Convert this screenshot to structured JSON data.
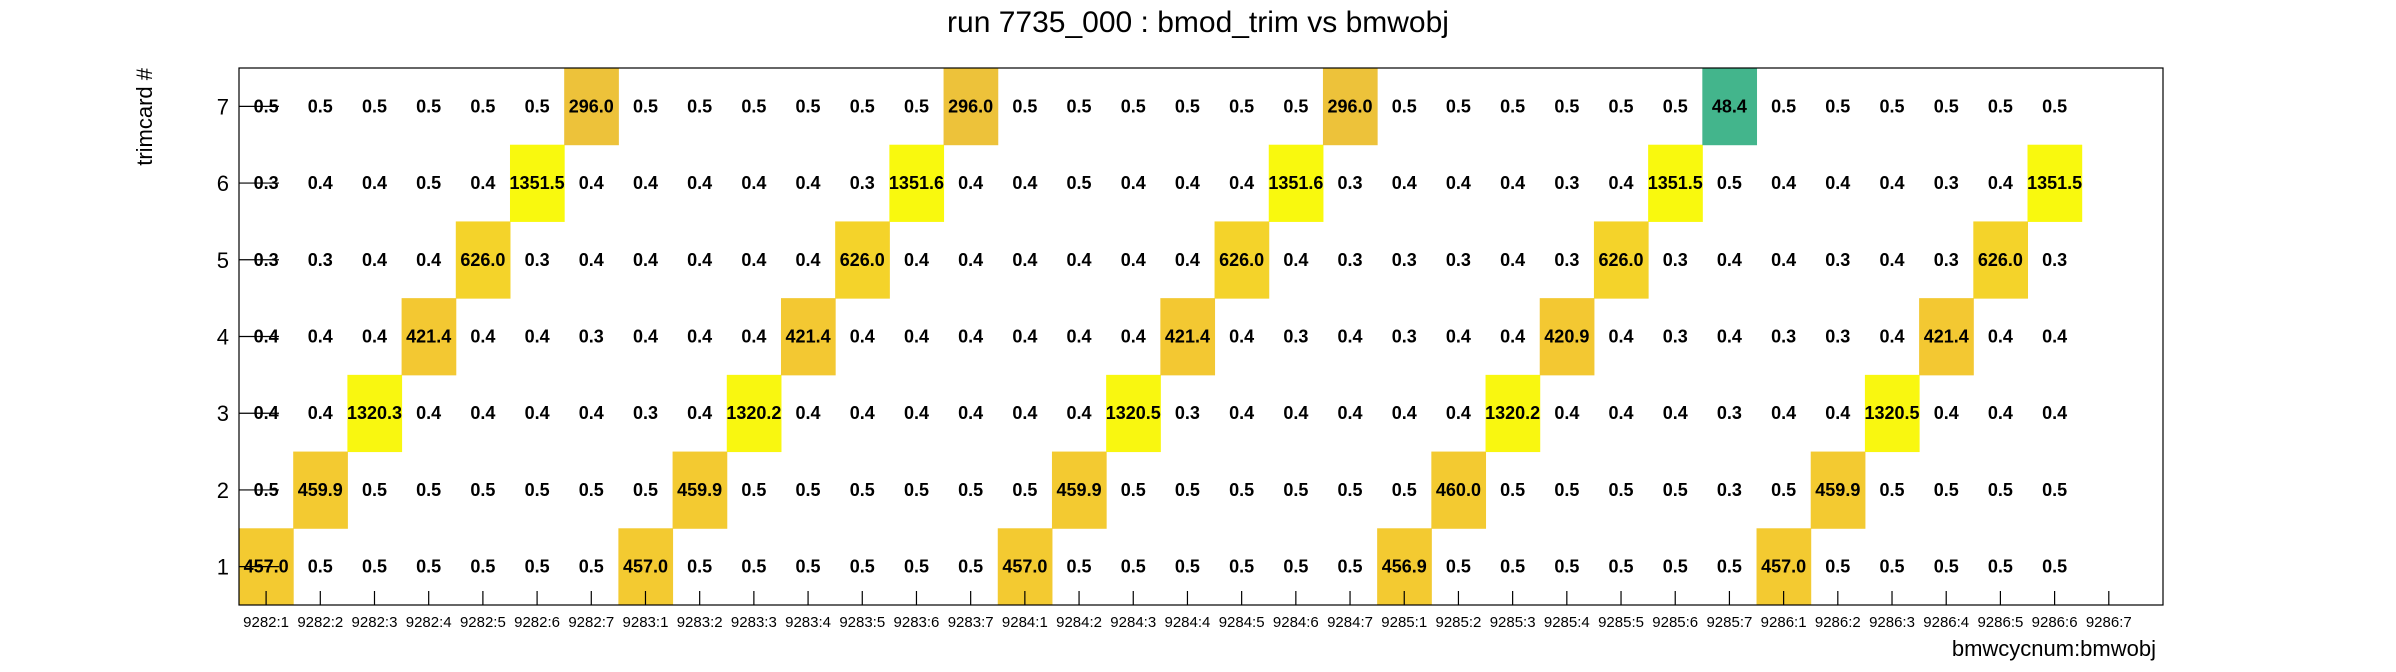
{
  "chart_data": {
    "type": "heatmap",
    "title": "run 7735_000 : bmod_trim vs bmwobj",
    "xlabel": "bmwcycnum:bmwobj",
    "ylabel": "trimcard #",
    "x_categories": [
      "9282:1",
      "9282:2",
      "9282:3",
      "9282:4",
      "9282:5",
      "9282:6",
      "9282:7",
      "9283:1",
      "9283:2",
      "9283:3",
      "9283:4",
      "9283:5",
      "9283:6",
      "9283:7",
      "9284:1",
      "9284:2",
      "9284:3",
      "9284:4",
      "9284:5",
      "9284:6",
      "9284:7",
      "9285:1",
      "9285:2",
      "9285:3",
      "9285:4",
      "9285:5",
      "9285:6",
      "9285:7",
      "9286:1",
      "9286:2",
      "9286:3",
      "9286:4",
      "9286:5",
      "9286:6",
      "9286:7"
    ],
    "y_categories": [
      "1",
      "2",
      "3",
      "4",
      "5",
      "6",
      "7"
    ],
    "color_scale": {
      "low": "#3db58f",
      "mid": "#f2c237",
      "high": "#f9f90e",
      "min": 40,
      "max": 1360
    },
    "rows": [
      {
        "y": "1",
        "values": [
          "457.0",
          "0.5",
          "0.5",
          "0.5",
          "0.5",
          "0.5",
          "0.5",
          "457.0",
          "0.5",
          "0.5",
          "0.5",
          "0.5",
          "0.5",
          "0.5",
          "457.0",
          "0.5",
          "0.5",
          "0.5",
          "0.5",
          "0.5",
          "0.5",
          "456.9",
          "0.5",
          "0.5",
          "0.5",
          "0.5",
          "0.5",
          "0.5",
          "457.0",
          "0.5",
          "0.5",
          "0.5",
          "0.5",
          "0.5",
          ""
        ]
      },
      {
        "y": "2",
        "values": [
          "0.5",
          "459.9",
          "0.5",
          "0.5",
          "0.5",
          "0.5",
          "0.5",
          "0.5",
          "459.9",
          "0.5",
          "0.5",
          "0.5",
          "0.5",
          "0.5",
          "0.5",
          "459.9",
          "0.5",
          "0.5",
          "0.5",
          "0.5",
          "0.5",
          "0.5",
          "460.0",
          "0.5",
          "0.5",
          "0.5",
          "0.5",
          "0.3",
          "0.5",
          "459.9",
          "0.5",
          "0.5",
          "0.5",
          "0.5",
          ""
        ]
      },
      {
        "y": "3",
        "values": [
          "0.4",
          "0.4",
          "1320.3",
          "0.4",
          "0.4",
          "0.4",
          "0.4",
          "0.3",
          "0.4",
          "1320.2",
          "0.4",
          "0.4",
          "0.4",
          "0.4",
          "0.4",
          "0.4",
          "1320.5",
          "0.3",
          "0.4",
          "0.4",
          "0.4",
          "0.4",
          "0.4",
          "1320.2",
          "0.4",
          "0.4",
          "0.4",
          "0.3",
          "0.4",
          "0.4",
          "1320.5",
          "0.4",
          "0.4",
          "0.4",
          ""
        ]
      },
      {
        "y": "4",
        "values": [
          "0.4",
          "0.4",
          "0.4",
          "421.4",
          "0.4",
          "0.4",
          "0.3",
          "0.4",
          "0.4",
          "0.4",
          "421.4",
          "0.4",
          "0.4",
          "0.4",
          "0.4",
          "0.4",
          "0.4",
          "421.4",
          "0.4",
          "0.3",
          "0.4",
          "0.3",
          "0.4",
          "0.4",
          "420.9",
          "0.4",
          "0.3",
          "0.4",
          "0.3",
          "0.3",
          "0.4",
          "421.4",
          "0.4",
          "0.4",
          ""
        ]
      },
      {
        "y": "5",
        "values": [
          "0.3",
          "0.3",
          "0.4",
          "0.4",
          "626.0",
          "0.3",
          "0.4",
          "0.4",
          "0.4",
          "0.4",
          "0.4",
          "626.0",
          "0.4",
          "0.4",
          "0.4",
          "0.4",
          "0.4",
          "0.4",
          "626.0",
          "0.4",
          "0.3",
          "0.3",
          "0.3",
          "0.4",
          "0.3",
          "626.0",
          "0.3",
          "0.4",
          "0.4",
          "0.3",
          "0.4",
          "0.3",
          "626.0",
          "0.3",
          ""
        ]
      },
      {
        "y": "6",
        "values": [
          "0.3",
          "0.4",
          "0.4",
          "0.5",
          "0.4",
          "1351.5",
          "0.4",
          "0.4",
          "0.4",
          "0.4",
          "0.4",
          "0.3",
          "1351.6",
          "0.4",
          "0.4",
          "0.5",
          "0.4",
          "0.4",
          "0.4",
          "1351.6",
          "0.3",
          "0.4",
          "0.4",
          "0.4",
          "0.3",
          "0.4",
          "1351.5",
          "0.5",
          "0.4",
          "0.4",
          "0.4",
          "0.3",
          "0.4",
          "1351.5",
          ""
        ]
      },
      {
        "y": "7",
        "values": [
          "0.5",
          "0.5",
          "0.5",
          "0.5",
          "0.5",
          "0.5",
          "296.0",
          "0.5",
          "0.5",
          "0.5",
          "0.5",
          "0.5",
          "0.5",
          "296.0",
          "0.5",
          "0.5",
          "0.5",
          "0.5",
          "0.5",
          "0.5",
          "296.0",
          "0.5",
          "0.5",
          "0.5",
          "0.5",
          "0.5",
          "0.5",
          "48.4",
          "0.5",
          "0.5",
          "0.5",
          "0.5",
          "0.5",
          "0.5",
          ""
        ]
      }
    ]
  }
}
